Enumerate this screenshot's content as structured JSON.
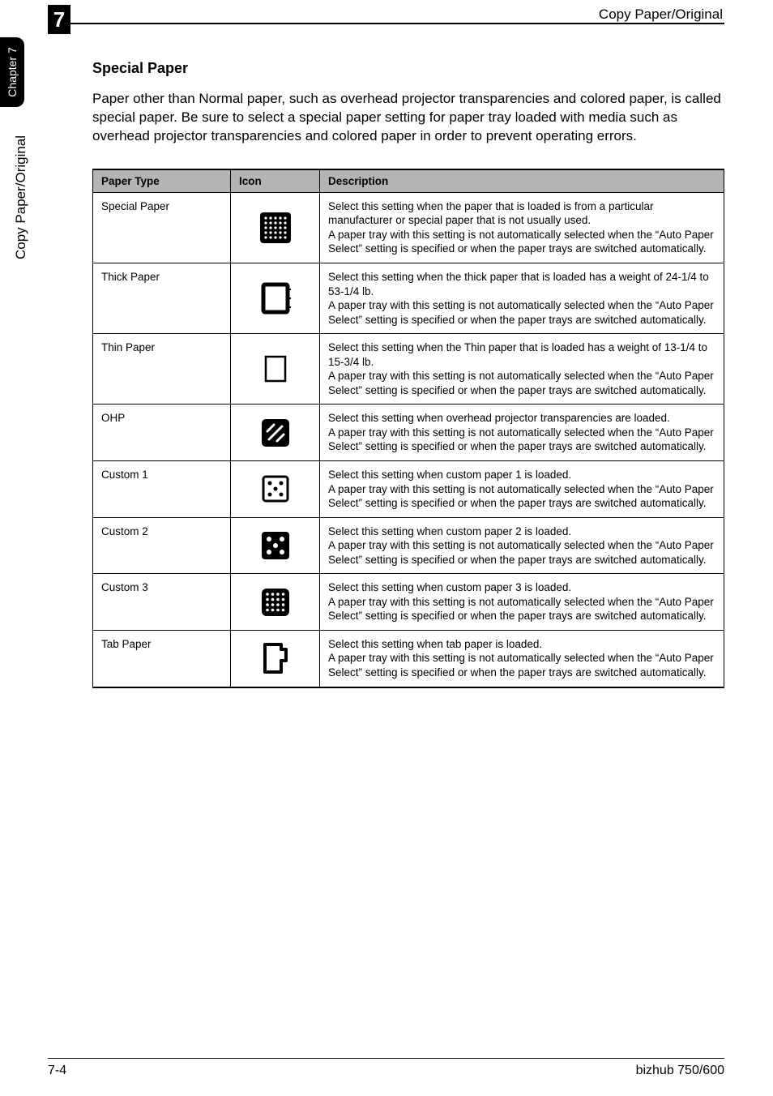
{
  "header": {
    "chapter_number": "7",
    "running_head": "Copy Paper/Original",
    "side_tab": "Chapter 7",
    "side_label": "Copy Paper/Original"
  },
  "section": {
    "title": "Special Paper",
    "intro": "Paper other than Normal paper, such as overhead projector transparencies and colored paper, is called special paper. Be sure to select a special paper setting for paper tray loaded with media such as overhead projector transparencies and colored paper in order to prevent operating errors."
  },
  "table": {
    "columns": [
      "Paper Type",
      "Icon",
      "Description"
    ],
    "rows": [
      {
        "type": "Special Paper",
        "icon": "special",
        "desc": "Select this setting when the paper that is loaded is from a particular manufacturer or special paper that is not usually used.\nA paper tray with this setting is not automatically selected when the “Auto Paper Select” setting is specified or when the paper trays are switched automatically."
      },
      {
        "type": "Thick Paper",
        "icon": "thick",
        "desc": "Select this setting when the thick paper that is loaded has a weight of 24-1/4 to 53-1/4 lb.\nA paper tray with this setting is not automatically selected when the “Auto Paper Select” setting is specified or when the paper trays are switched automatically."
      },
      {
        "type": "Thin Paper",
        "icon": "thin",
        "desc": "Select this setting when the Thin paper that is loaded has a weight of 13-1/4 to 15-3/4 lb.\nA paper tray with this setting is not automatically selected when the “Auto Paper Select” setting is specified or when the paper trays are switched automatically."
      },
      {
        "type": "OHP",
        "icon": "ohp",
        "desc": "Select this setting when overhead projector transparencies are loaded.\nA paper tray with this setting is not automatically selected when the “Auto Paper Select” setting is specified or when the paper trays are switched automatically."
      },
      {
        "type": "Custom 1",
        "icon": "custom1",
        "desc": "Select this setting when custom paper 1 is loaded.\nA paper tray with this setting is not automatically selected when the “Auto Paper Select” setting is specified or when the paper trays are switched automatically."
      },
      {
        "type": "Custom 2",
        "icon": "custom2",
        "desc": "Select this setting when custom paper 2 is loaded.\nA paper tray with this setting is not automatically selected when the “Auto Paper Select” setting is specified or when the paper trays are switched automatically."
      },
      {
        "type": "Custom 3",
        "icon": "custom3",
        "desc": "Select this setting when custom paper 3 is loaded.\nA paper tray with this setting is not automatically selected when the “Auto Paper Select” setting is specified or when the paper trays are switched automatically."
      },
      {
        "type": "Tab Paper",
        "icon": "tab",
        "desc": "Select this setting when tab paper is loaded.\nA paper tray with this setting is not automatically selected when the “Auto Paper Select” setting is specified or when the paper trays are switched automatically."
      }
    ]
  },
  "footer": {
    "left": "7-4",
    "right": "bizhub 750/600"
  }
}
